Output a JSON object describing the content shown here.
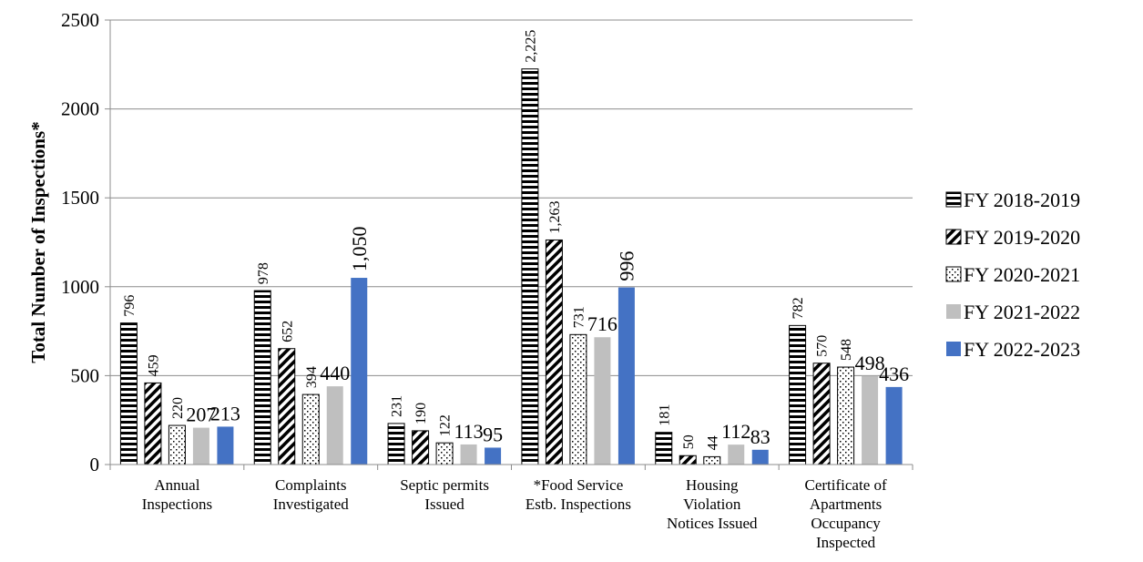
{
  "chart_data": {
    "type": "bar",
    "title": "",
    "xlabel": "",
    "ylabel": "Total Number of Inspections*",
    "ylim": [
      0,
      2500
    ],
    "yticks": [
      "0",
      "500",
      "1000",
      "1500",
      "2000",
      "2500"
    ],
    "grid": true,
    "legend_position": "right",
    "categories": [
      [
        "Annual",
        "Inspections"
      ],
      [
        "Complaints",
        "Investigated"
      ],
      [
        "Septic permits",
        "Issued"
      ],
      [
        "*Food Service",
        "Estb. Inspections"
      ],
      [
        "Housing",
        "Violation",
        "Notices Issued"
      ],
      [
        "Certificate of",
        "Apartments",
        "Occupancy",
        "Inspected"
      ]
    ],
    "series": [
      {
        "name": "FY 2018-2019",
        "pattern": "horizontal-stripes",
        "color": "#000000",
        "values": [
          796,
          978,
          231,
          2225,
          181,
          782
        ],
        "labels": [
          "796",
          "978",
          "231",
          "2,225",
          "181",
          "782"
        ]
      },
      {
        "name": "FY 2019-2020",
        "pattern": "diagonal-stripes",
        "color": "#000000",
        "values": [
          459,
          652,
          190,
          1263,
          50,
          570
        ],
        "labels": [
          "459",
          "652",
          "190",
          "1,263",
          "50",
          "570"
        ]
      },
      {
        "name": "FY 2020-2021",
        "pattern": "dots",
        "color": "#000000",
        "values": [
          220,
          394,
          122,
          731,
          44,
          548
        ],
        "labels": [
          "220",
          "394",
          "122",
          "731",
          "44",
          "548"
        ]
      },
      {
        "name": "FY 2021-2022",
        "pattern": "solid",
        "color": "#bfbfbf",
        "values": [
          207,
          440,
          113,
          716,
          112,
          498
        ],
        "labels": [
          "207",
          "440",
          "113",
          "716",
          "112",
          "498"
        ]
      },
      {
        "name": "FY 2022-2023",
        "pattern": "solid",
        "color": "#4472c4",
        "values": [
          213,
          1050,
          95,
          996,
          83,
          436
        ],
        "labels": [
          "213",
          "1,050",
          "95",
          "996",
          "83",
          "436"
        ]
      }
    ]
  }
}
